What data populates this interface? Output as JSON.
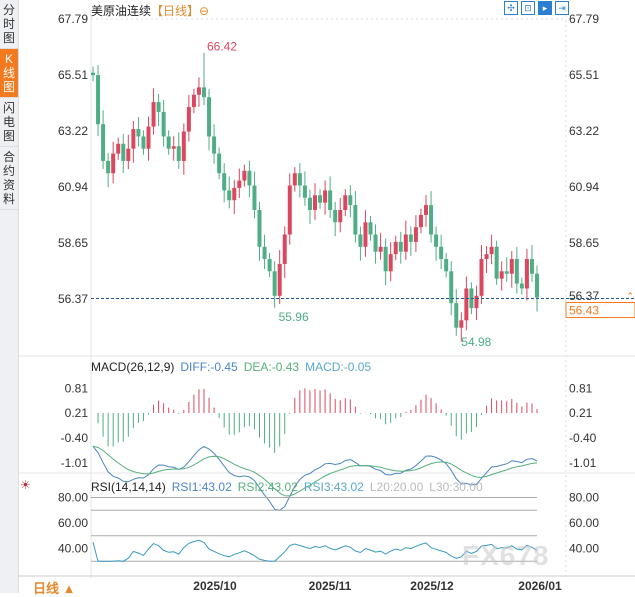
{
  "sidebar": {
    "tabs": [
      {
        "label": "分时图"
      },
      {
        "label": "K线图",
        "active": true
      },
      {
        "label": "闪电图"
      },
      {
        "label": "合约资料"
      }
    ]
  },
  "header": {
    "instrument": "美原油连续",
    "period": "【日线】",
    "zoom_icon": "⊖",
    "tools": [
      "move-icon",
      "range-icon",
      "select-icon",
      "exit-icon"
    ]
  },
  "colors": {
    "up": "#d9485f",
    "down": "#4fae85",
    "diff": "#4a86c5",
    "dea": "#55b07a",
    "rsi": "#3b9bc0",
    "accent": "#f47a20"
  },
  "chart_data": [
    {
      "type": "candlestick",
      "title": "美原油连续 日线",
      "y_ticks": [
        "67.79",
        "65.51",
        "63.22",
        "60.94",
        "58.65",
        "56.37"
      ],
      "ylim": [
        55.2,
        67.79
      ],
      "x_ticks": [
        "2025/10",
        "2025/11",
        "2025/12",
        "2026/01"
      ],
      "closes": [
        65.5,
        63.5,
        62.0,
        61.5,
        62.3,
        62.7,
        62.0,
        62.5,
        63.3,
        63.0,
        62.5,
        63.4,
        64.4,
        64.0,
        63.0,
        62.5,
        62.6,
        62.0,
        63.2,
        64.2,
        64.7,
        65.0,
        64.6,
        63.0,
        62.3,
        61.5,
        60.8,
        60.4,
        60.9,
        61.2,
        61.6,
        61.0,
        60.0,
        58.5,
        58.0,
        57.5,
        56.5,
        57.8,
        59.0,
        61.0,
        61.5,
        61.0,
        60.5,
        60.0,
        60.6,
        60.3,
        60.8,
        60.0,
        59.5,
        60.0,
        60.6,
        60.2,
        59.0,
        58.5,
        59.5,
        59.0,
        58.3,
        58.5,
        57.5,
        58.2,
        58.7,
        58.3,
        59.0,
        58.7,
        59.3,
        59.8,
        60.2,
        59.0,
        58.5,
        58.0,
        57.5,
        56.2,
        55.2,
        55.5,
        56.8,
        56.0,
        56.5,
        58.0,
        58.2,
        58.5,
        57.2,
        57.5,
        57.4,
        58.0,
        57.0,
        56.8,
        58.0,
        57.4,
        56.43
      ],
      "annotations": {
        "high": "66.42",
        "high_value": 66.42,
        "low1": "55.96",
        "low1_value": 55.96,
        "low2": "54.98",
        "low2_value": 54.98,
        "last": "56.43",
        "last_value": 56.43
      }
    },
    {
      "type": "macd",
      "label": "MACD(26,12,9)",
      "diff": "DIFF:-0.45",
      "dea": "DEA:-0.43",
      "macd": "MACD:-0.05",
      "y_ticks": [
        "0.81",
        "0.21",
        "-0.40",
        "-1.01"
      ]
    },
    {
      "type": "rsi",
      "label": "RSI(14,14,14)",
      "rsi1": "RSI1:43.02",
      "rsi2": "RSI2:43.02",
      "rsi3": "RSI3:43.02",
      "l20": "L20:20.00",
      "l30": "L30:30.00",
      "y_ticks": [
        "80.00",
        "60.00",
        "40.00"
      ]
    }
  ],
  "footer": {
    "period_button": "日线 ▲",
    "watermark": "FX678"
  }
}
